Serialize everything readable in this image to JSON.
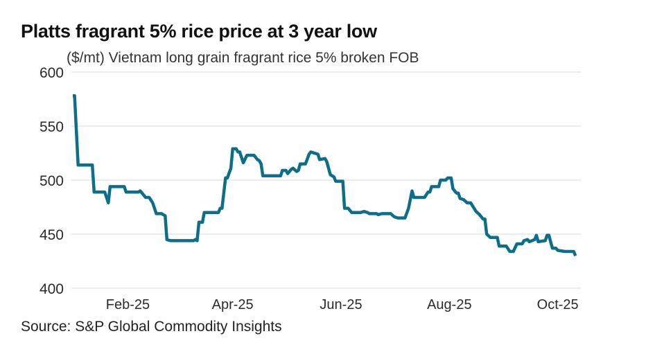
{
  "header": {
    "title": "Platts fragrant 5% rice price at 3 year low",
    "subtitle": "($/mt) Vietnam long grain fragrant rice 5% broken FOB"
  },
  "footer": {
    "source": "Source: S&P Global Commodity Insights"
  },
  "colors": {
    "line": "#0c6e89",
    "grid": "#e0e0e0"
  },
  "chart_data": {
    "type": "line",
    "title": "Platts fragrant 5% rice price at 3 year low",
    "subtitle": "($/mt) Vietnam long grain fragrant rice 5% broken FOB",
    "xlabel": "",
    "ylabel": "($/mt)",
    "ylim": [
      400,
      600
    ],
    "yticks": [
      400,
      450,
      500,
      550,
      600
    ],
    "xlim": [
      "2025-01-01",
      "2025-10-14"
    ],
    "xticks": [
      {
        "date": "2025-02-01",
        "label": "Feb-25"
      },
      {
        "date": "2025-04-01",
        "label": "Apr-25"
      },
      {
        "date": "2025-06-01",
        "label": "Jun-25"
      },
      {
        "date": "2025-08-01",
        "label": "Aug-25"
      },
      {
        "date": "2025-10-01",
        "label": "Oct-25"
      }
    ],
    "grid": true,
    "legend": "none",
    "series": [
      {
        "name": "Vietnam long grain fragrant rice 5% broken FOB",
        "points": [
          [
            "2025-01-01",
            578
          ],
          [
            "2025-01-02",
            578
          ],
          [
            "2025-01-04",
            514
          ],
          [
            "2025-01-12",
            514
          ],
          [
            "2025-01-13",
            489
          ],
          [
            "2025-01-19",
            489
          ],
          [
            "2025-01-21",
            479
          ],
          [
            "2025-01-22",
            494
          ],
          [
            "2025-01-30",
            494
          ],
          [
            "2025-01-31",
            489
          ],
          [
            "2025-02-07",
            489
          ],
          [
            "2025-02-08",
            490
          ],
          [
            "2025-02-11",
            484
          ],
          [
            "2025-02-13",
            484
          ],
          [
            "2025-02-15",
            479
          ],
          [
            "2025-02-17",
            469
          ],
          [
            "2025-02-20",
            469
          ],
          [
            "2025-02-22",
            467
          ],
          [
            "2025-02-23",
            445
          ],
          [
            "2025-02-25",
            444
          ],
          [
            "2025-03-10",
            444
          ],
          [
            "2025-03-11",
            445
          ],
          [
            "2025-03-12",
            444
          ],
          [
            "2025-03-13",
            461
          ],
          [
            "2025-03-15",
            461
          ],
          [
            "2025-03-16",
            470
          ],
          [
            "2025-03-24",
            470
          ],
          [
            "2025-03-25",
            474
          ],
          [
            "2025-03-26",
            474
          ],
          [
            "2025-03-28",
            502
          ],
          [
            "2025-03-29",
            502
          ],
          [
            "2025-03-31",
            511
          ],
          [
            "2025-04-01",
            529
          ],
          [
            "2025-04-03",
            529
          ],
          [
            "2025-04-04",
            526
          ],
          [
            "2025-04-05",
            526
          ],
          [
            "2025-04-07",
            516
          ],
          [
            "2025-04-09",
            523
          ],
          [
            "2025-04-13",
            523
          ],
          [
            "2025-04-15",
            519
          ],
          [
            "2025-04-16",
            518
          ],
          [
            "2025-04-17",
            515
          ],
          [
            "2025-04-18",
            504
          ],
          [
            "2025-04-28",
            504
          ],
          [
            "2025-04-29",
            509
          ],
          [
            "2025-05-01",
            509
          ],
          [
            "2025-05-02",
            506
          ],
          [
            "2025-05-04",
            510
          ],
          [
            "2025-05-05",
            511
          ],
          [
            "2025-05-07",
            508
          ],
          [
            "2025-05-08",
            509
          ],
          [
            "2025-05-09",
            515
          ],
          [
            "2025-05-12",
            515
          ],
          [
            "2025-05-14",
            524
          ],
          [
            "2025-05-15",
            526
          ],
          [
            "2025-05-17",
            525
          ],
          [
            "2025-05-19",
            524
          ],
          [
            "2025-05-20",
            519
          ],
          [
            "2025-05-23",
            520
          ],
          [
            "2025-05-24",
            517
          ],
          [
            "2025-05-26",
            505
          ],
          [
            "2025-05-28",
            503
          ],
          [
            "2025-05-29",
            499
          ],
          [
            "2025-06-02",
            499
          ],
          [
            "2025-06-03",
            474
          ],
          [
            "2025-06-05",
            474
          ],
          [
            "2025-06-07",
            470
          ],
          [
            "2025-06-12",
            470
          ],
          [
            "2025-06-14",
            471
          ],
          [
            "2025-06-16",
            470
          ],
          [
            "2025-06-17",
            469
          ],
          [
            "2025-06-21",
            469
          ],
          [
            "2025-06-22",
            468
          ],
          [
            "2025-06-24",
            469
          ],
          [
            "2025-06-29",
            469
          ],
          [
            "2025-07-01",
            466
          ],
          [
            "2025-07-03",
            465
          ],
          [
            "2025-07-07",
            465
          ],
          [
            "2025-07-09",
            474
          ],
          [
            "2025-07-11",
            490
          ],
          [
            "2025-07-12",
            484
          ],
          [
            "2025-07-18",
            484
          ],
          [
            "2025-07-20",
            489
          ],
          [
            "2025-07-21",
            489
          ],
          [
            "2025-07-22",
            494
          ],
          [
            "2025-07-26",
            494
          ],
          [
            "2025-07-27",
            500
          ],
          [
            "2025-07-30",
            500
          ],
          [
            "2025-07-31",
            502
          ],
          [
            "2025-08-02",
            502
          ],
          [
            "2025-08-03",
            492
          ],
          [
            "2025-08-05",
            488
          ],
          [
            "2025-08-06",
            488
          ],
          [
            "2025-08-07",
            483
          ],
          [
            "2025-08-09",
            482
          ],
          [
            "2025-08-11",
            479
          ],
          [
            "2025-08-13",
            479
          ],
          [
            "2025-08-16",
            471
          ],
          [
            "2025-08-18",
            468
          ],
          [
            "2025-08-20",
            464
          ],
          [
            "2025-08-21",
            464
          ],
          [
            "2025-08-22",
            450
          ],
          [
            "2025-08-24",
            447
          ],
          [
            "2025-08-28",
            447
          ],
          [
            "2025-08-29",
            439
          ],
          [
            "2025-09-02",
            439
          ],
          [
            "2025-09-04",
            434
          ],
          [
            "2025-09-06",
            434
          ],
          [
            "2025-09-08",
            441
          ],
          [
            "2025-09-11",
            441
          ],
          [
            "2025-09-12",
            444
          ],
          [
            "2025-09-14",
            445
          ],
          [
            "2025-09-15",
            443
          ],
          [
            "2025-09-18",
            445
          ],
          [
            "2025-09-19",
            449
          ],
          [
            "2025-09-20",
            443
          ],
          [
            "2025-09-24",
            444
          ],
          [
            "2025-09-25",
            449
          ],
          [
            "2025-09-26",
            449
          ],
          [
            "2025-09-27",
            443
          ],
          [
            "2025-09-28",
            437
          ],
          [
            "2025-09-30",
            437
          ],
          [
            "2025-10-01",
            435
          ],
          [
            "2025-10-05",
            434
          ],
          [
            "2025-10-10",
            434
          ],
          [
            "2025-10-11",
            430
          ]
        ]
      }
    ]
  }
}
